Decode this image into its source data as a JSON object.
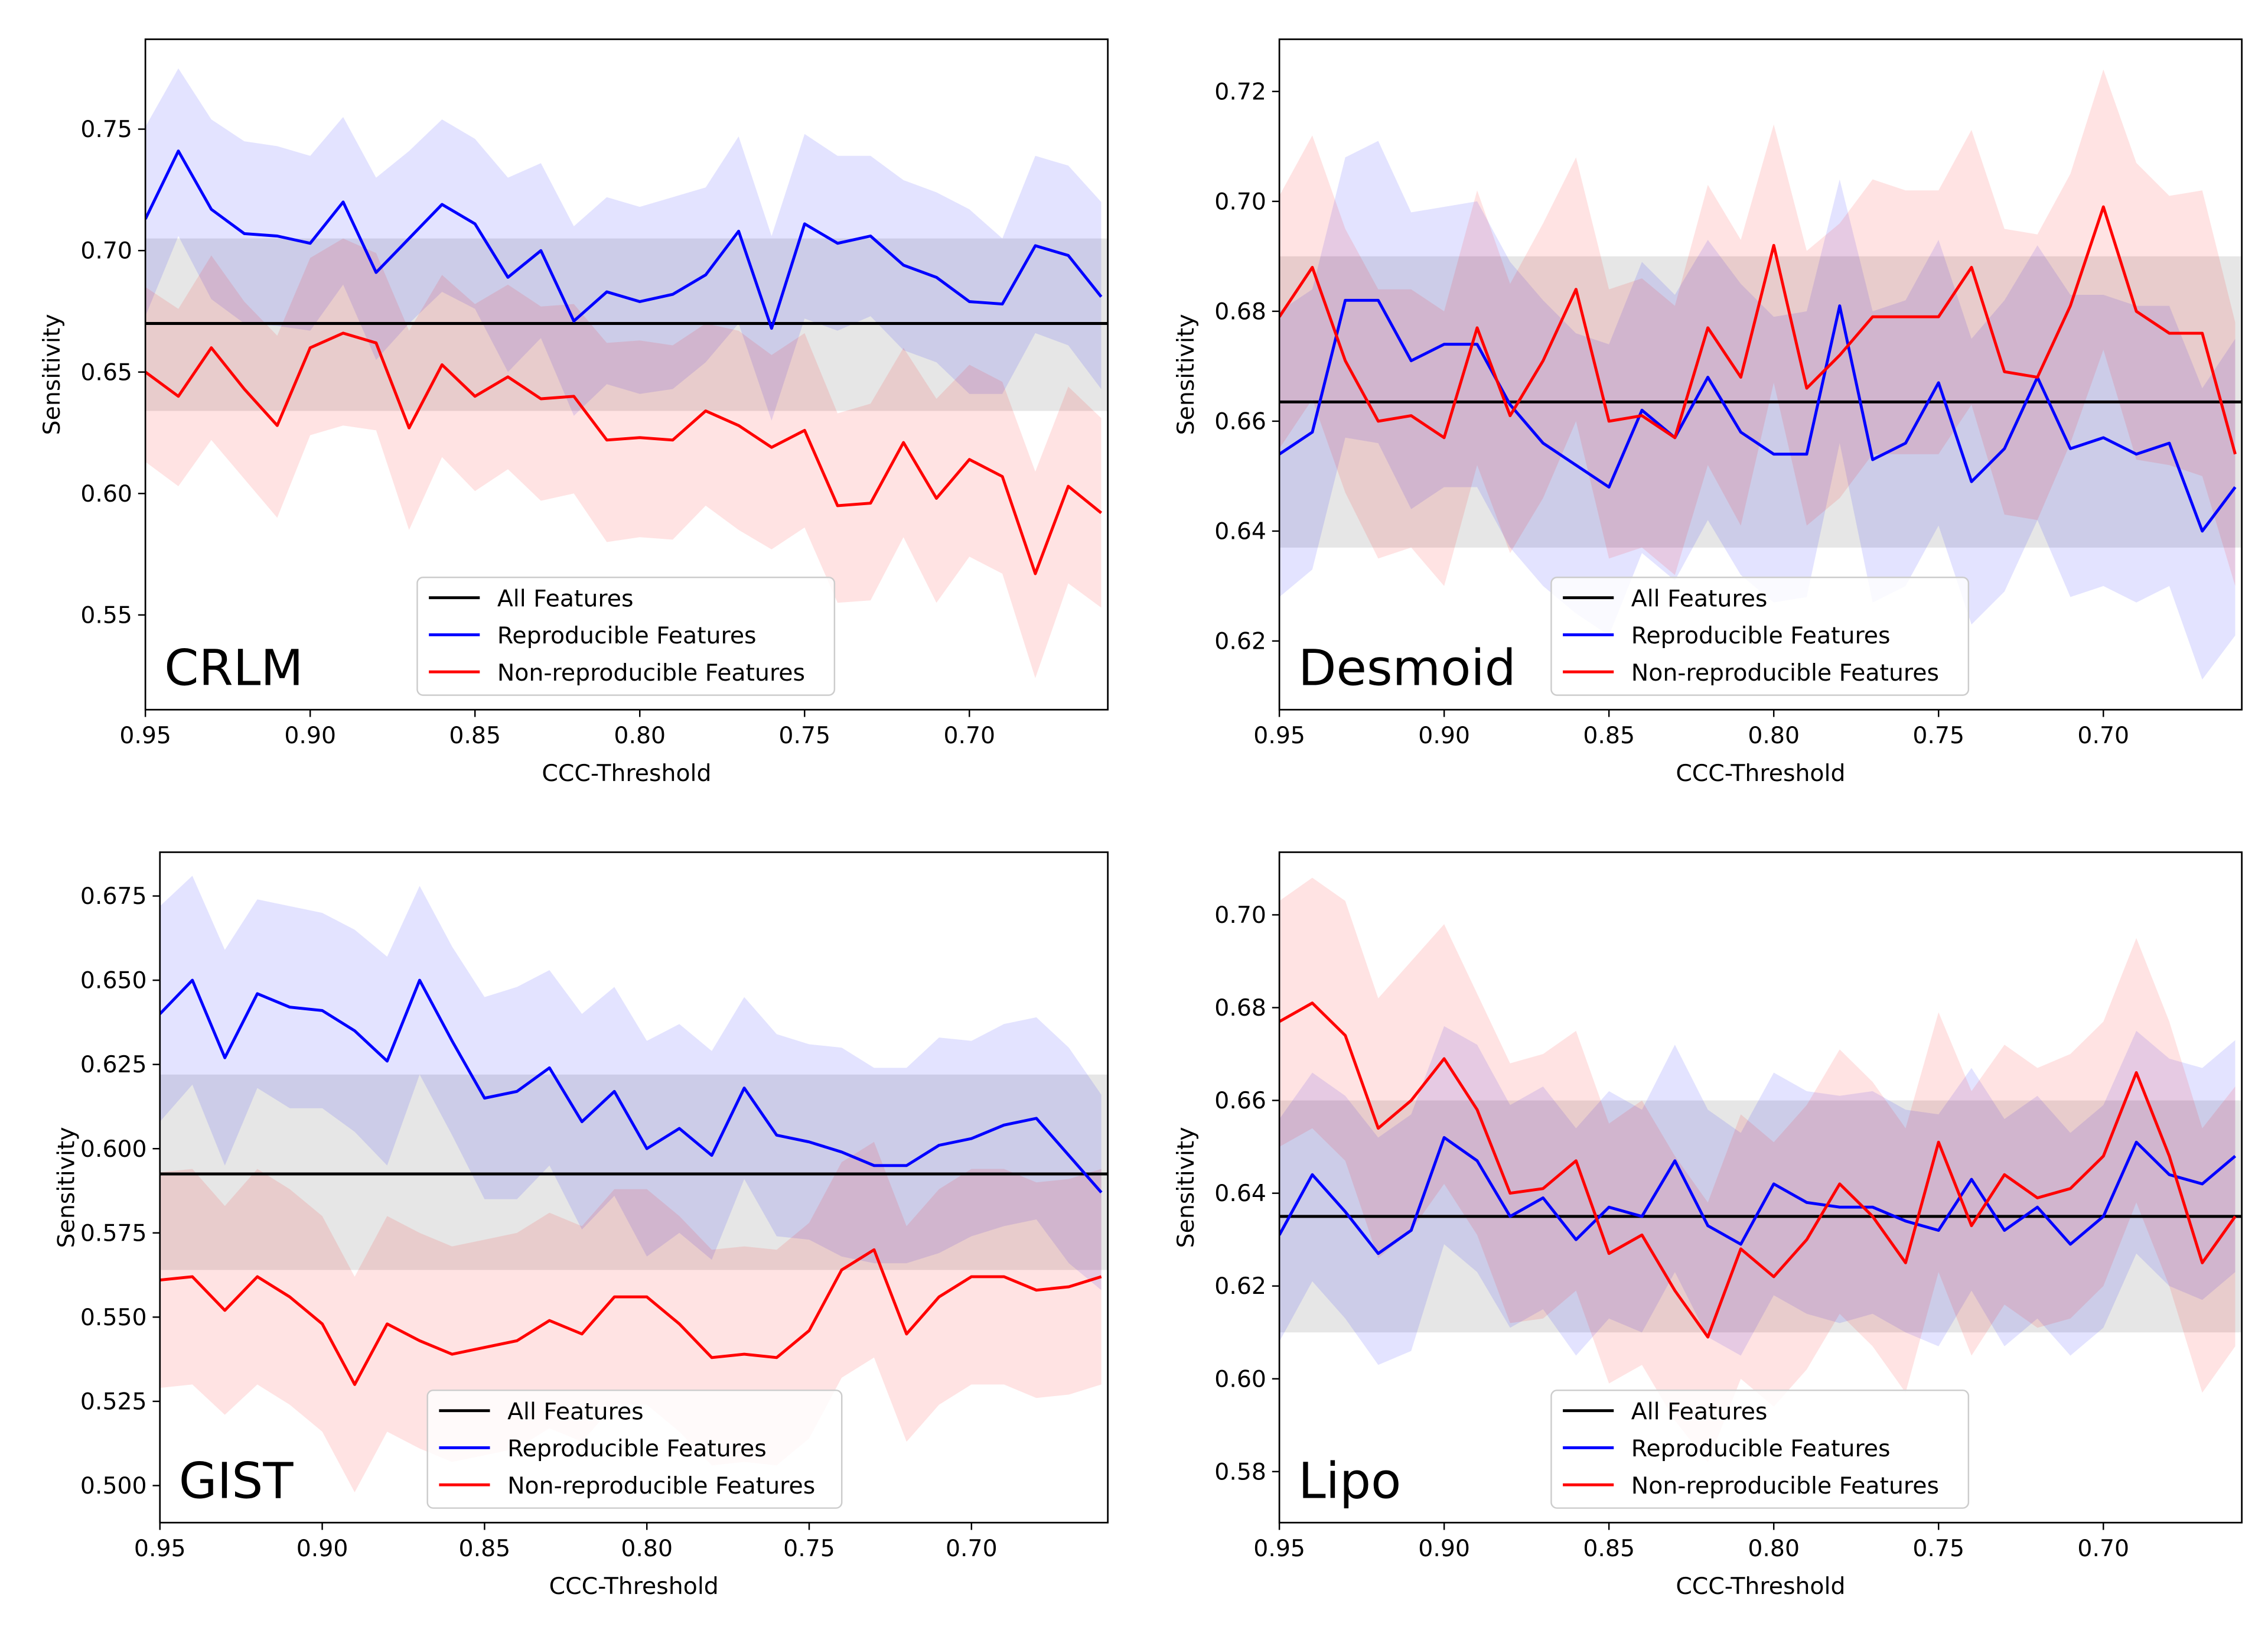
{
  "chart_data": [
    {
      "type": "line",
      "panel_label": "CRLM",
      "xlabel": "CCC-Threshold",
      "ylabel": "Sensitivity",
      "xlim": [
        0.95,
        0.658
      ],
      "ylim": [
        0.511,
        0.787
      ],
      "x_ticks": [
        "0.95",
        "0.90",
        "0.85",
        "0.80",
        "0.75",
        "0.70"
      ],
      "y_ticks": [
        "0.55",
        "0.60",
        "0.65",
        "0.70",
        "0.75"
      ],
      "legend_position": "lower-center",
      "x": [
        0.95,
        0.94,
        0.93,
        0.92,
        0.91,
        0.9,
        0.89,
        0.88,
        0.87,
        0.86,
        0.85,
        0.84,
        0.83,
        0.82,
        0.81,
        0.8,
        0.79,
        0.78,
        0.77,
        0.76,
        0.75,
        0.74,
        0.73,
        0.72,
        0.71,
        0.7,
        0.69,
        0.68,
        0.67,
        0.66
      ],
      "all_features": {
        "value": 0.67,
        "band": [
          0.634,
          0.705
        ]
      },
      "series": [
        {
          "name": "Reproducible Features",
          "color": "#0000ff",
          "values": [
            0.713,
            0.741,
            0.717,
            0.707,
            0.706,
            0.703,
            0.72,
            0.691,
            0.705,
            0.719,
            0.711,
            0.689,
            0.7,
            0.671,
            0.683,
            0.679,
            0.682,
            0.69,
            0.708,
            0.668,
            0.711,
            0.703,
            0.706,
            0.694,
            0.689,
            0.679,
            0.678,
            0.702,
            0.698,
            0.681
          ],
          "upper": [
            0.751,
            0.775,
            0.754,
            0.745,
            0.743,
            0.739,
            0.755,
            0.73,
            0.741,
            0.754,
            0.746,
            0.73,
            0.736,
            0.71,
            0.722,
            0.718,
            0.722,
            0.726,
            0.747,
            0.706,
            0.748,
            0.739,
            0.739,
            0.729,
            0.724,
            0.717,
            0.705,
            0.739,
            0.735,
            0.72
          ],
          "lower": [
            0.673,
            0.706,
            0.68,
            0.67,
            0.669,
            0.667,
            0.686,
            0.655,
            0.67,
            0.683,
            0.676,
            0.65,
            0.664,
            0.632,
            0.645,
            0.641,
            0.643,
            0.654,
            0.67,
            0.63,
            0.672,
            0.667,
            0.673,
            0.659,
            0.654,
            0.641,
            0.641,
            0.666,
            0.661,
            0.643
          ]
        },
        {
          "name": "Non-reproducible Features",
          "color": "#ff0000",
          "values": [
            0.65,
            0.64,
            0.66,
            0.643,
            0.628,
            0.66,
            0.666,
            0.662,
            0.627,
            0.653,
            0.64,
            0.648,
            0.639,
            0.64,
            0.622,
            0.623,
            0.622,
            0.634,
            0.628,
            0.619,
            0.626,
            0.595,
            0.596,
            0.621,
            0.598,
            0.614,
            0.607,
            0.567,
            0.603,
            0.592
          ],
          "upper": [
            0.685,
            0.676,
            0.698,
            0.679,
            0.665,
            0.697,
            0.705,
            0.699,
            0.667,
            0.69,
            0.678,
            0.686,
            0.677,
            0.678,
            0.662,
            0.663,
            0.661,
            0.67,
            0.667,
            0.657,
            0.666,
            0.633,
            0.637,
            0.66,
            0.639,
            0.653,
            0.646,
            0.609,
            0.644,
            0.631
          ],
          "lower": [
            0.613,
            0.603,
            0.622,
            0.606,
            0.59,
            0.624,
            0.628,
            0.626,
            0.585,
            0.615,
            0.601,
            0.61,
            0.597,
            0.6,
            0.58,
            0.582,
            0.581,
            0.595,
            0.585,
            0.577,
            0.586,
            0.555,
            0.556,
            0.582,
            0.555,
            0.574,
            0.567,
            0.524,
            0.563,
            0.553
          ]
        }
      ]
    },
    {
      "type": "line",
      "panel_label": "Desmoid",
      "xlabel": "CCC-Threshold",
      "ylabel": "Sensitivity",
      "xlim": [
        0.95,
        0.658
      ],
      "ylim": [
        0.6075,
        0.7295
      ],
      "x_ticks": [
        "0.95",
        "0.90",
        "0.85",
        "0.80",
        "0.75",
        "0.70"
      ],
      "y_ticks": [
        "0.62",
        "0.64",
        "0.66",
        "0.68",
        "0.70",
        "0.72"
      ],
      "legend_position": "lower-center",
      "x": [
        0.95,
        0.94,
        0.93,
        0.92,
        0.91,
        0.9,
        0.89,
        0.88,
        0.87,
        0.86,
        0.85,
        0.84,
        0.83,
        0.82,
        0.81,
        0.8,
        0.79,
        0.78,
        0.77,
        0.76,
        0.75,
        0.74,
        0.73,
        0.72,
        0.71,
        0.7,
        0.69,
        0.68,
        0.67,
        0.66
      ],
      "all_features": {
        "value": 0.6635,
        "band": [
          0.637,
          0.69
        ]
      },
      "series": [
        {
          "name": "Reproducible Features",
          "color": "#0000ff",
          "values": [
            0.654,
            0.658,
            0.682,
            0.682,
            0.671,
            0.674,
            0.674,
            0.663,
            0.656,
            0.652,
            0.648,
            0.662,
            0.657,
            0.668,
            0.658,
            0.654,
            0.654,
            0.681,
            0.653,
            0.656,
            0.667,
            0.649,
            0.655,
            0.668,
            0.655,
            0.657,
            0.654,
            0.656,
            0.64,
            0.648
          ],
          "upper": [
            0.68,
            0.684,
            0.708,
            0.711,
            0.698,
            0.699,
            0.7,
            0.689,
            0.682,
            0.676,
            0.674,
            0.689,
            0.683,
            0.693,
            0.685,
            0.679,
            0.68,
            0.704,
            0.68,
            0.682,
            0.693,
            0.675,
            0.682,
            0.692,
            0.683,
            0.683,
            0.681,
            0.681,
            0.666,
            0.675
          ],
          "lower": [
            0.628,
            0.633,
            0.657,
            0.656,
            0.644,
            0.648,
            0.648,
            0.637,
            0.63,
            0.625,
            0.621,
            0.636,
            0.631,
            0.642,
            0.632,
            0.627,
            0.628,
            0.656,
            0.627,
            0.63,
            0.641,
            0.623,
            0.629,
            0.642,
            0.628,
            0.63,
            0.627,
            0.63,
            0.613,
            0.621
          ]
        },
        {
          "name": "Non-reproducible Features",
          "color": "#ff0000",
          "values": [
            0.679,
            0.688,
            0.671,
            0.66,
            0.661,
            0.657,
            0.677,
            0.661,
            0.671,
            0.684,
            0.66,
            0.661,
            0.657,
            0.677,
            0.668,
            0.692,
            0.666,
            0.672,
            0.679,
            0.679,
            0.679,
            0.688,
            0.669,
            0.668,
            0.681,
            0.699,
            0.68,
            0.676,
            0.676,
            0.654
          ],
          "upper": [
            0.701,
            0.712,
            0.695,
            0.684,
            0.684,
            0.68,
            0.702,
            0.685,
            0.696,
            0.708,
            0.684,
            0.686,
            0.681,
            0.703,
            0.693,
            0.714,
            0.691,
            0.696,
            0.704,
            0.702,
            0.702,
            0.713,
            0.695,
            0.694,
            0.705,
            0.724,
            0.707,
            0.701,
            0.702,
            0.678
          ],
          "lower": [
            0.655,
            0.664,
            0.647,
            0.635,
            0.637,
            0.63,
            0.652,
            0.636,
            0.646,
            0.66,
            0.635,
            0.637,
            0.632,
            0.652,
            0.641,
            0.667,
            0.641,
            0.646,
            0.654,
            0.654,
            0.654,
            0.663,
            0.643,
            0.642,
            0.656,
            0.673,
            0.653,
            0.652,
            0.65,
            0.63
          ]
        }
      ]
    },
    {
      "type": "line",
      "panel_label": "GIST",
      "xlabel": "CCC-Threshold",
      "ylabel": "Sensitivity",
      "xlim": [
        0.95,
        0.658
      ],
      "ylim": [
        0.489,
        0.688
      ],
      "x_ticks": [
        "0.95",
        "0.90",
        "0.85",
        "0.80",
        "0.75",
        "0.70"
      ],
      "y_ticks": [
        "0.500",
        "0.525",
        "0.550",
        "0.575",
        "0.600",
        "0.625",
        "0.650",
        "0.675"
      ],
      "legend_position": "lower-center",
      "x": [
        0.95,
        0.94,
        0.93,
        0.92,
        0.91,
        0.9,
        0.89,
        0.88,
        0.87,
        0.86,
        0.85,
        0.84,
        0.83,
        0.82,
        0.81,
        0.8,
        0.79,
        0.78,
        0.77,
        0.76,
        0.75,
        0.74,
        0.73,
        0.72,
        0.71,
        0.7,
        0.69,
        0.68,
        0.67,
        0.66
      ],
      "all_features": {
        "value": 0.5925,
        "band": [
          0.564,
          0.622
        ]
      },
      "series": [
        {
          "name": "Reproducible Features",
          "color": "#0000ff",
          "values": [
            0.64,
            0.65,
            0.627,
            0.646,
            0.642,
            0.641,
            0.635,
            0.626,
            0.65,
            0.632,
            0.615,
            0.617,
            0.624,
            0.608,
            0.617,
            0.6,
            0.606,
            0.598,
            0.618,
            0.604,
            0.602,
            0.599,
            0.595,
            0.595,
            0.601,
            0.603,
            0.607,
            0.609,
            0.598,
            0.587
          ],
          "upper": [
            0.672,
            0.681,
            0.659,
            0.674,
            0.672,
            0.67,
            0.665,
            0.657,
            0.678,
            0.66,
            0.645,
            0.648,
            0.653,
            0.64,
            0.648,
            0.632,
            0.637,
            0.629,
            0.645,
            0.634,
            0.631,
            0.63,
            0.624,
            0.624,
            0.633,
            0.632,
            0.637,
            0.639,
            0.63,
            0.616
          ],
          "lower": [
            0.608,
            0.619,
            0.595,
            0.618,
            0.612,
            0.612,
            0.605,
            0.595,
            0.622,
            0.604,
            0.585,
            0.585,
            0.595,
            0.576,
            0.586,
            0.568,
            0.575,
            0.567,
            0.591,
            0.574,
            0.573,
            0.568,
            0.566,
            0.566,
            0.569,
            0.574,
            0.577,
            0.579,
            0.566,
            0.558
          ]
        },
        {
          "name": "Non-reproducible Features",
          "color": "#ff0000",
          "values": [
            0.561,
            0.562,
            0.552,
            0.562,
            0.556,
            0.548,
            0.53,
            0.548,
            0.543,
            0.539,
            0.541,
            0.543,
            0.549,
            0.545,
            0.556,
            0.556,
            0.548,
            0.538,
            0.539,
            0.538,
            0.546,
            0.564,
            0.57,
            0.545,
            0.556,
            0.562,
            0.562,
            0.558,
            0.559,
            0.562
          ],
          "upper": [
            0.593,
            0.594,
            0.583,
            0.594,
            0.588,
            0.58,
            0.562,
            0.58,
            0.575,
            0.571,
            0.573,
            0.575,
            0.581,
            0.577,
            0.588,
            0.588,
            0.58,
            0.57,
            0.571,
            0.57,
            0.578,
            0.596,
            0.602,
            0.577,
            0.588,
            0.594,
            0.594,
            0.59,
            0.591,
            0.594
          ],
          "lower": [
            0.529,
            0.53,
            0.521,
            0.53,
            0.524,
            0.516,
            0.498,
            0.516,
            0.511,
            0.507,
            0.509,
            0.511,
            0.517,
            0.513,
            0.524,
            0.524,
            0.516,
            0.506,
            0.507,
            0.506,
            0.514,
            0.532,
            0.538,
            0.513,
            0.524,
            0.53,
            0.53,
            0.526,
            0.527,
            0.53
          ]
        }
      ]
    },
    {
      "type": "line",
      "panel_label": "Lipo",
      "xlabel": "CCC-Threshold",
      "ylabel": "Sensitivity",
      "xlim": [
        0.95,
        0.658
      ],
      "ylim": [
        0.569,
        0.7135
      ],
      "x_ticks": [
        "0.95",
        "0.90",
        "0.85",
        "0.80",
        "0.75",
        "0.70"
      ],
      "y_ticks": [
        "0.58",
        "0.60",
        "0.62",
        "0.64",
        "0.66",
        "0.68",
        "0.70"
      ],
      "legend_position": "lower-center",
      "x": [
        0.95,
        0.94,
        0.93,
        0.92,
        0.91,
        0.9,
        0.89,
        0.88,
        0.87,
        0.86,
        0.85,
        0.84,
        0.83,
        0.82,
        0.81,
        0.8,
        0.79,
        0.78,
        0.77,
        0.76,
        0.75,
        0.74,
        0.73,
        0.72,
        0.71,
        0.7,
        0.69,
        0.68,
        0.67,
        0.66
      ],
      "all_features": {
        "value": 0.635,
        "band": [
          0.61,
          0.66
        ]
      },
      "series": [
        {
          "name": "Reproducible Features",
          "color": "#0000ff",
          "values": [
            0.631,
            0.644,
            0.636,
            0.627,
            0.632,
            0.652,
            0.647,
            0.635,
            0.639,
            0.63,
            0.637,
            0.635,
            0.647,
            0.633,
            0.629,
            0.642,
            0.638,
            0.637,
            0.637,
            0.634,
            0.632,
            0.643,
            0.632,
            0.637,
            0.629,
            0.635,
            0.651,
            0.644,
            0.642,
            0.648
          ],
          "upper": [
            0.656,
            0.666,
            0.661,
            0.652,
            0.657,
            0.676,
            0.672,
            0.659,
            0.663,
            0.654,
            0.662,
            0.658,
            0.672,
            0.658,
            0.653,
            0.666,
            0.662,
            0.661,
            0.662,
            0.658,
            0.657,
            0.667,
            0.656,
            0.661,
            0.653,
            0.659,
            0.675,
            0.669,
            0.667,
            0.673
          ],
          "lower": [
            0.608,
            0.621,
            0.613,
            0.603,
            0.606,
            0.629,
            0.623,
            0.611,
            0.615,
            0.605,
            0.613,
            0.61,
            0.623,
            0.609,
            0.605,
            0.618,
            0.614,
            0.612,
            0.614,
            0.61,
            0.607,
            0.619,
            0.607,
            0.613,
            0.605,
            0.611,
            0.627,
            0.62,
            0.617,
            0.623
          ]
        },
        {
          "name": "Non-reproducible Features",
          "color": "#ff0000",
          "values": [
            0.677,
            0.681,
            0.674,
            0.654,
            0.66,
            0.669,
            0.658,
            0.64,
            0.641,
            0.647,
            0.627,
            0.631,
            0.619,
            0.609,
            0.628,
            0.622,
            0.63,
            0.642,
            0.635,
            0.625,
            0.651,
            0.633,
            0.644,
            0.639,
            0.641,
            0.648,
            0.666,
            0.648,
            0.625,
            0.635
          ],
          "upper": [
            0.703,
            0.708,
            0.703,
            0.682,
            0.69,
            0.698,
            0.683,
            0.668,
            0.67,
            0.675,
            0.655,
            0.66,
            0.648,
            0.638,
            0.657,
            0.651,
            0.659,
            0.671,
            0.664,
            0.654,
            0.679,
            0.662,
            0.672,
            0.667,
            0.67,
            0.677,
            0.695,
            0.677,
            0.654,
            0.663
          ],
          "lower": [
            0.65,
            0.654,
            0.647,
            0.626,
            0.632,
            0.642,
            0.631,
            0.612,
            0.613,
            0.619,
            0.599,
            0.603,
            0.591,
            0.582,
            0.6,
            0.594,
            0.602,
            0.614,
            0.607,
            0.597,
            0.623,
            0.605,
            0.616,
            0.611,
            0.613,
            0.62,
            0.638,
            0.62,
            0.597,
            0.607
          ]
        }
      ],
      "extra": {
        "legend": [
          "All Features",
          "Reproducible Features",
          "Non-reproducible Features"
        ]
      }
    }
  ],
  "legend": {
    "all_label": "All Features",
    "all_color": "#000000",
    "band_color": "#808080"
  }
}
